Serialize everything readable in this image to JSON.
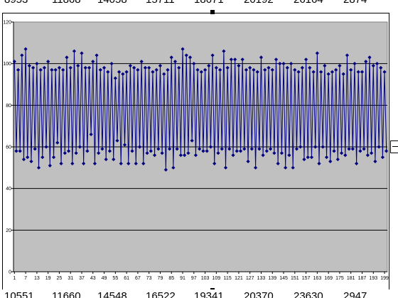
{
  "sheet": {
    "top_cells": [
      "8953",
      "11868",
      "14058",
      "15711",
      "18671",
      "20192",
      "26164",
      "2874"
    ],
    "bottom_cells": [
      "10551",
      "11660",
      "14548",
      "16522",
      "19341",
      "20370",
      "23630",
      "2947"
    ]
  },
  "chart_data": {
    "type": "line",
    "markers": "diamond",
    "title": "",
    "xlabel": "",
    "ylabel": "",
    "ylim": [
      0,
      120
    ],
    "yticks": [
      0,
      20,
      40,
      60,
      80,
      100,
      120
    ],
    "xticks": [
      1,
      7,
      13,
      19,
      25,
      31,
      37,
      43,
      49,
      55,
      61,
      67,
      73,
      79,
      85,
      91,
      97,
      103,
      109,
      115,
      121,
      127,
      133,
      139,
      145,
      151,
      157,
      163,
      169,
      175,
      181,
      187,
      193,
      199
    ],
    "xlim": [
      1,
      200
    ],
    "grid": "horizontal major gridlines",
    "plot_background": "#c0c0c0",
    "series_color": "#000080",
    "series": [
      {
        "values": [
          101,
          58,
          97,
          58,
          104,
          54,
          107,
          55,
          99,
          53,
          98,
          59,
          100,
          50,
          97,
          55,
          98,
          60,
          101,
          51,
          97,
          55,
          97,
          62,
          98,
          52,
          97,
          57,
          103,
          58,
          98,
          52,
          106,
          57,
          99,
          60,
          105,
          52,
          98,
          58,
          98,
          66,
          101,
          52,
          104,
          57,
          97,
          59,
          98,
          54,
          96,
          58,
          100,
          54,
          93,
          63,
          96,
          52,
          95,
          61,
          96,
          52,
          99,
          58,
          98,
          52,
          97,
          60,
          101,
          52,
          98,
          57,
          98,
          58,
          96,
          56,
          97,
          59,
          99,
          57,
          95,
          49,
          97,
          59,
          103,
          50,
          101,
          59,
          98,
          56,
          107,
          56,
          104,
          57,
          103,
          63,
          100,
          56,
          97,
          59,
          96,
          58,
          97,
          58,
          99,
          60,
          104,
          52,
          98,
          57,
          97,
          59,
          106,
          50,
          98,
          59,
          102,
          56,
          102,
          58,
          99,
          58,
          102,
          59,
          97,
          53,
          98,
          59,
          97,
          50,
          96,
          59,
          103,
          56,
          97,
          58,
          98,
          59,
          97,
          57,
          102,
          52,
          100,
          57,
          100,
          50,
          98,
          56,
          100,
          50,
          97,
          59,
          96,
          60,
          98,
          54,
          102,
          55,
          98,
          55,
          96,
          60,
          105,
          52,
          96,
          60,
          99,
          55,
          95,
          53,
          96,
          58,
          97,
          54,
          99,
          57,
          95,
          56,
          104,
          59,
          97,
          59,
          100,
          52,
          96,
          58,
          96,
          59,
          101,
          56,
          103,
          57,
          99,
          53,
          100,
          60,
          98,
          55,
          96,
          58
        ]
      }
    ]
  }
}
